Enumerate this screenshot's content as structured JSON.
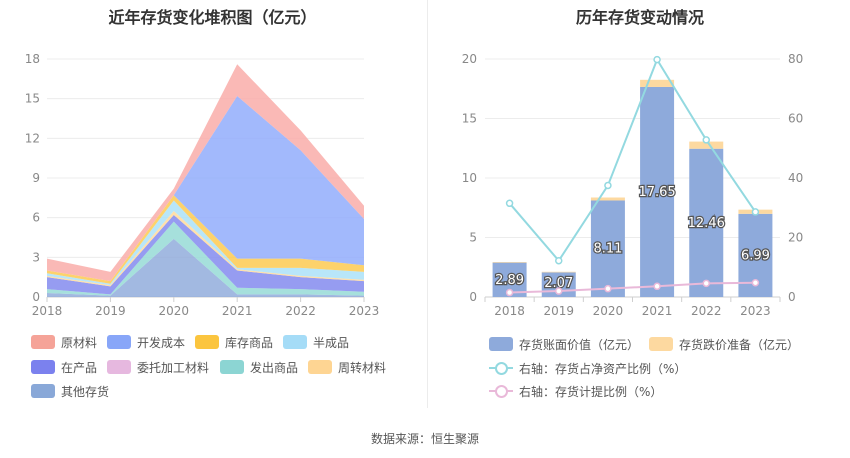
{
  "source_text": "数据来源：恒生聚源",
  "chart_data": [
    {
      "type": "area",
      "stacked": true,
      "title": "近年存货变化堆积图（亿元）",
      "x": [
        "2018",
        "2019",
        "2020",
        "2021",
        "2022",
        "2023"
      ],
      "y_ticks": [
        "0",
        "3",
        "6",
        "9",
        "12",
        "15",
        "18"
      ],
      "ylim": [
        0,
        18
      ],
      "series": [
        {
          "name": "其他存货",
          "color": "#8eaadb",
          "values": [
            0.3,
            0.1,
            4.4,
            0.2,
            0.2,
            0.1
          ]
        },
        {
          "name": "发出商品",
          "color": "#92d9d4",
          "values": [
            0.3,
            0.1,
            1.3,
            0.5,
            0.4,
            0.3
          ]
        },
        {
          "name": "委托加工材料",
          "color": "#e4b9de",
          "values": [
            0.0,
            0.0,
            0.0,
            0.0,
            0.0,
            0.0
          ]
        },
        {
          "name": "在产品",
          "color": "#7f86ee",
          "values": [
            0.9,
            0.6,
            0.5,
            1.3,
            0.9,
            0.8
          ]
        },
        {
          "name": "周转材料",
          "color": "#ffd998",
          "values": [
            0.1,
            0.1,
            0.3,
            0.1,
            0.1,
            0.1
          ]
        },
        {
          "name": "半成品",
          "color": "#a8e0f8",
          "values": [
            0.2,
            0.1,
            0.8,
            0.1,
            0.6,
            0.6
          ]
        },
        {
          "name": "库存商品",
          "color": "#fcc84a",
          "values": [
            0.2,
            0.2,
            0.4,
            0.7,
            0.7,
            0.5
          ]
        },
        {
          "name": "开发成本",
          "color": "#8eaafb",
          "values": [
            0.0,
            0.0,
            0.0,
            12.3,
            8.2,
            3.5
          ]
        },
        {
          "name": "原材料",
          "color": "#f9aaa6",
          "values": [
            0.9,
            0.7,
            0.5,
            2.4,
            1.5,
            1.0
          ]
        }
      ],
      "legend": [
        {
          "name": "原材料",
          "color": "#f5a398"
        },
        {
          "name": "开发成本",
          "color": "#88a6f8"
        },
        {
          "name": "库存商品",
          "color": "#fbc53f"
        },
        {
          "name": "半成品",
          "color": "#a5dcf7"
        },
        {
          "name": "在产品",
          "color": "#7b81ee"
        },
        {
          "name": "委托加工材料",
          "color": "#e6b8df"
        },
        {
          "name": "发出商品",
          "color": "#8cd5d3"
        },
        {
          "name": "周转材料",
          "color": "#fed593"
        },
        {
          "name": "其他存货",
          "color": "#89a8d8"
        }
      ]
    },
    {
      "type": "bar+line",
      "title": "历年存货变动情况",
      "x": [
        "2018",
        "2019",
        "2020",
        "2021",
        "2022",
        "2023"
      ],
      "y_left_ticks": [
        "0",
        "5",
        "10",
        "15",
        "20"
      ],
      "y_left_lim": [
        0,
        20
      ],
      "y_right_ticks": [
        "0",
        "20",
        "40",
        "60",
        "80"
      ],
      "y_right_lim": [
        0,
        80
      ],
      "bars": [
        {
          "name": "存货账面价值（亿元）",
          "color": "#8eaadb",
          "values": [
            2.89,
            2.07,
            8.11,
            17.65,
            12.46,
            6.99
          ],
          "labels": [
            "2.89",
            "2.07",
            "8.11",
            "17.65",
            "12.46",
            "6.99"
          ]
        },
        {
          "name": "存货跌价准备（亿元）",
          "color": "#fdd9a0",
          "values": [
            0.05,
            0.05,
            0.25,
            0.6,
            0.6,
            0.35
          ]
        }
      ],
      "lines": [
        {
          "name": "右轴：存货占净资产比例（%）",
          "color": "#93d9e0",
          "values": [
            31.5,
            12.2,
            37.5,
            79.8,
            52.8,
            28.6
          ]
        },
        {
          "name": "右轴：存货计提比例（%）",
          "color": "#e9b9d9",
          "values": [
            1.5,
            2.0,
            2.8,
            3.6,
            4.6,
            4.8
          ]
        }
      ]
    }
  ]
}
